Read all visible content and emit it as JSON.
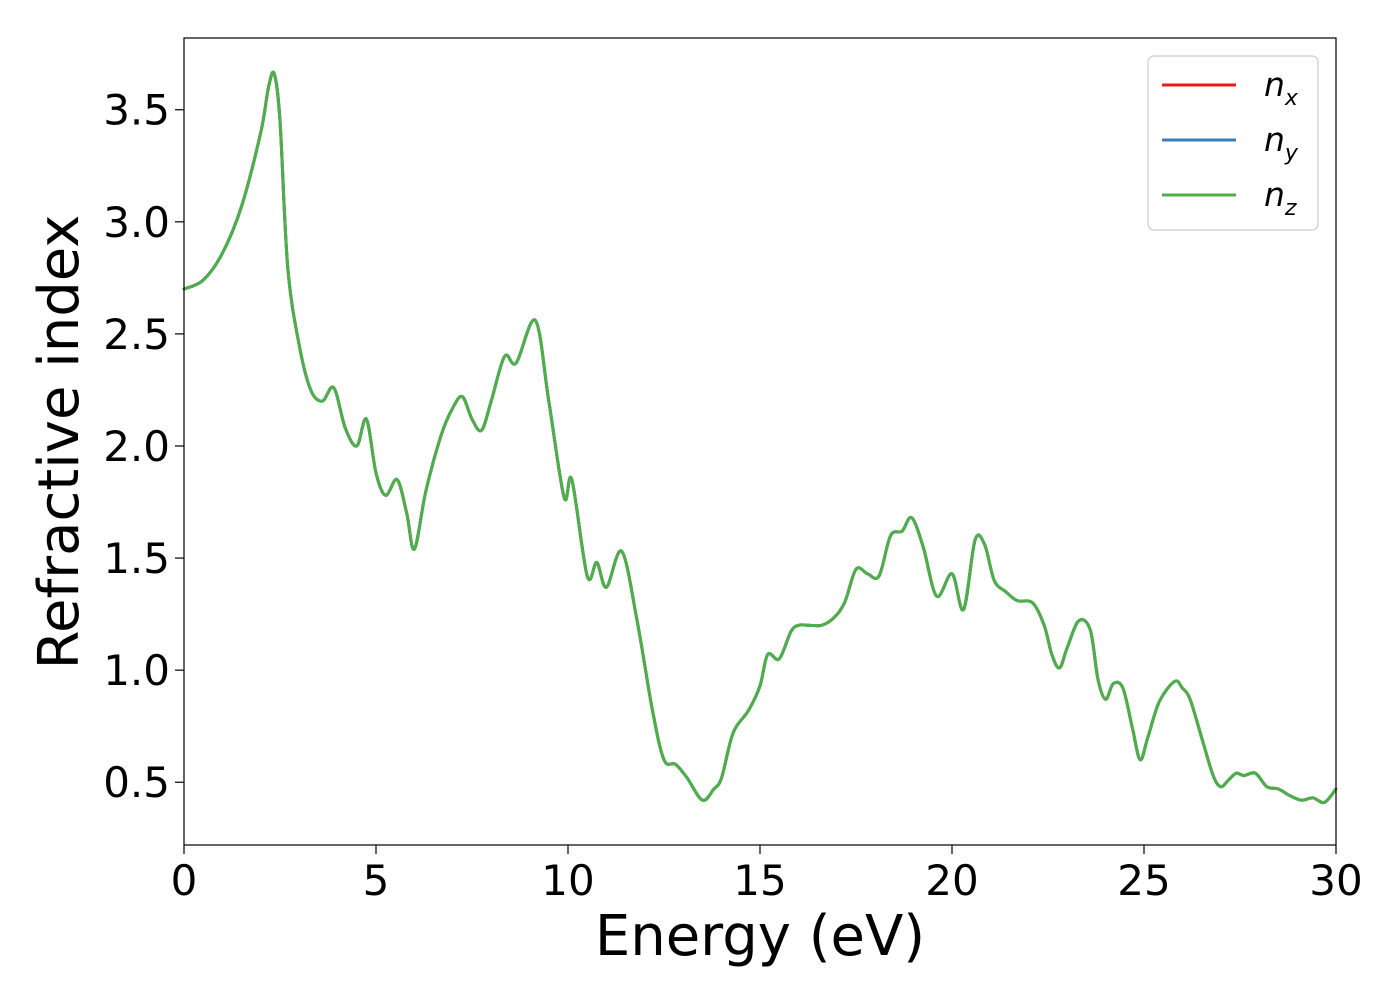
{
  "chart_data": {
    "type": "line",
    "title": "",
    "xlabel": "Energy (eV)",
    "ylabel": "Refractive index",
    "xlim": [
      0,
      30
    ],
    "ylim": [
      0.22,
      3.82
    ],
    "xticks": [
      0,
      5,
      10,
      15,
      20,
      25,
      30
    ],
    "yticks": [
      0.5,
      1.0,
      1.5,
      2.0,
      2.5,
      3.0,
      3.5
    ],
    "xtick_labels": [
      "0",
      "5",
      "10",
      "15",
      "20",
      "25",
      "30"
    ],
    "ytick_labels": [
      "0.5",
      "1.0",
      "1.5",
      "2.0",
      "2.5",
      "3.0",
      "3.5"
    ],
    "grid": false,
    "legend_position": "top-right",
    "x": [
      0,
      0.5,
      1.0,
      1.5,
      2.0,
      2.2,
      2.35,
      2.5,
      2.7,
      3.0,
      3.3,
      3.6,
      3.9,
      4.2,
      4.5,
      4.75,
      5.0,
      5.25,
      5.55,
      5.8,
      6.0,
      6.3,
      6.7,
      7.0,
      7.25,
      7.5,
      7.75,
      8.0,
      8.35,
      8.65,
      9.15,
      9.5,
      9.9,
      10.1,
      10.5,
      10.75,
      11.0,
      11.4,
      11.8,
      12.2,
      12.5,
      12.8,
      13.1,
      13.5,
      13.8,
      14.0,
      14.3,
      14.7,
      15.0,
      15.2,
      15.5,
      15.8,
      16.0,
      16.3,
      16.6,
      16.9,
      17.2,
      17.5,
      17.8,
      18.1,
      18.4,
      18.7,
      18.95,
      19.25,
      19.6,
      20.0,
      20.3,
      20.6,
      20.85,
      21.1,
      21.4,
      21.7,
      22.1,
      22.4,
      22.6,
      22.8,
      23.0,
      23.3,
      23.6,
      23.8,
      24.0,
      24.2,
      24.45,
      24.7,
      24.9,
      25.1,
      25.4,
      25.8,
      26.0,
      26.2,
      26.5,
      26.8,
      27.0,
      27.2,
      27.4,
      27.6,
      27.9,
      28.2,
      28.5,
      28.8,
      29.1,
      29.4,
      29.7,
      30.0
    ],
    "series": [
      {
        "name": "n",
        "subscript": "x",
        "color": "#e41a1c",
        "values": [
          2.7,
          2.74,
          2.86,
          3.07,
          3.4,
          3.6,
          3.66,
          3.45,
          2.8,
          2.45,
          2.25,
          2.2,
          2.26,
          2.08,
          2.0,
          2.12,
          1.88,
          1.78,
          1.85,
          1.7,
          1.54,
          1.8,
          2.05,
          2.17,
          2.22,
          2.12,
          2.07,
          2.2,
          2.4,
          2.37,
          2.56,
          2.2,
          1.77,
          1.85,
          1.42,
          1.48,
          1.37,
          1.53,
          1.22,
          0.82,
          0.6,
          0.58,
          0.52,
          0.42,
          0.47,
          0.52,
          0.72,
          0.82,
          0.93,
          1.07,
          1.05,
          1.17,
          1.2,
          1.2,
          1.2,
          1.23,
          1.3,
          1.45,
          1.43,
          1.42,
          1.6,
          1.62,
          1.68,
          1.55,
          1.33,
          1.43,
          1.27,
          1.58,
          1.56,
          1.4,
          1.35,
          1.31,
          1.3,
          1.2,
          1.07,
          1.01,
          1.1,
          1.22,
          1.18,
          0.96,
          0.87,
          0.94,
          0.92,
          0.74,
          0.6,
          0.7,
          0.86,
          0.95,
          0.92,
          0.87,
          0.7,
          0.53,
          0.48,
          0.51,
          0.54,
          0.53,
          0.54,
          0.48,
          0.47,
          0.44,
          0.42,
          0.43,
          0.41,
          0.47
        ]
      },
      {
        "name": "n",
        "subscript": "y",
        "color": "#377eb8",
        "values": [
          2.7,
          2.74,
          2.86,
          3.07,
          3.4,
          3.6,
          3.66,
          3.45,
          2.8,
          2.45,
          2.25,
          2.2,
          2.26,
          2.08,
          2.0,
          2.12,
          1.88,
          1.78,
          1.85,
          1.7,
          1.54,
          1.8,
          2.05,
          2.17,
          2.22,
          2.12,
          2.07,
          2.2,
          2.4,
          2.37,
          2.56,
          2.2,
          1.77,
          1.85,
          1.42,
          1.48,
          1.37,
          1.53,
          1.22,
          0.82,
          0.6,
          0.58,
          0.52,
          0.42,
          0.47,
          0.52,
          0.72,
          0.82,
          0.93,
          1.07,
          1.05,
          1.17,
          1.2,
          1.2,
          1.2,
          1.23,
          1.3,
          1.45,
          1.43,
          1.42,
          1.6,
          1.62,
          1.68,
          1.55,
          1.33,
          1.43,
          1.27,
          1.58,
          1.56,
          1.4,
          1.35,
          1.31,
          1.3,
          1.2,
          1.07,
          1.01,
          1.1,
          1.22,
          1.18,
          0.96,
          0.87,
          0.94,
          0.92,
          0.74,
          0.6,
          0.7,
          0.86,
          0.95,
          0.92,
          0.87,
          0.7,
          0.53,
          0.48,
          0.51,
          0.54,
          0.53,
          0.54,
          0.48,
          0.47,
          0.44,
          0.42,
          0.43,
          0.41,
          0.47
        ]
      },
      {
        "name": "n",
        "subscript": "z",
        "color": "#4daf4a",
        "values": [
          2.7,
          2.74,
          2.86,
          3.07,
          3.4,
          3.6,
          3.66,
          3.45,
          2.8,
          2.45,
          2.25,
          2.2,
          2.26,
          2.08,
          2.0,
          2.12,
          1.88,
          1.78,
          1.85,
          1.7,
          1.54,
          1.8,
          2.05,
          2.17,
          2.22,
          2.12,
          2.07,
          2.2,
          2.4,
          2.37,
          2.56,
          2.2,
          1.77,
          1.85,
          1.42,
          1.48,
          1.37,
          1.53,
          1.22,
          0.82,
          0.6,
          0.58,
          0.52,
          0.42,
          0.47,
          0.52,
          0.72,
          0.82,
          0.93,
          1.07,
          1.05,
          1.17,
          1.2,
          1.2,
          1.2,
          1.23,
          1.3,
          1.45,
          1.43,
          1.42,
          1.6,
          1.62,
          1.68,
          1.55,
          1.33,
          1.43,
          1.27,
          1.58,
          1.56,
          1.4,
          1.35,
          1.31,
          1.3,
          1.2,
          1.07,
          1.01,
          1.1,
          1.22,
          1.18,
          0.96,
          0.87,
          0.94,
          0.92,
          0.74,
          0.6,
          0.7,
          0.86,
          0.95,
          0.92,
          0.87,
          0.7,
          0.53,
          0.48,
          0.51,
          0.54,
          0.53,
          0.54,
          0.48,
          0.47,
          0.44,
          0.42,
          0.43,
          0.41,
          0.47
        ]
      }
    ]
  }
}
